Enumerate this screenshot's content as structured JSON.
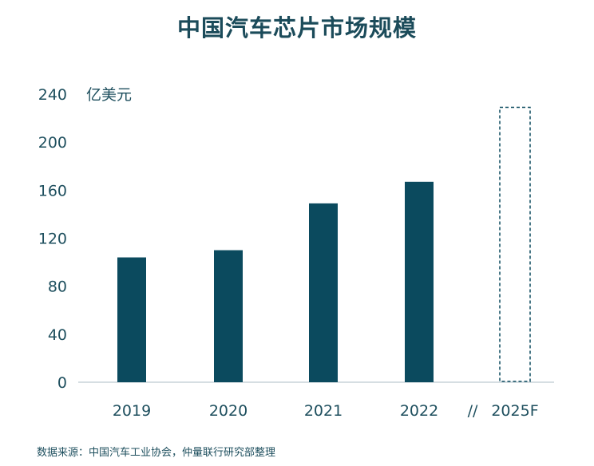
{
  "title": "中国汽车芯片市场规模",
  "source": "数据来源：中国汽车工业协会，仲量联行研究部整理",
  "chart_data": {
    "type": "bar",
    "title": "中国汽车芯片市场规模",
    "ylabel": "亿美元",
    "xlabel": "",
    "ylim": [
      0,
      240
    ],
    "yticks": [
      0,
      40,
      80,
      120,
      160,
      200,
      240
    ],
    "categories": [
      "2019",
      "2020",
      "2021",
      "2022",
      "2025F"
    ],
    "values": [
      104,
      110,
      149,
      167,
      229
    ],
    "forecast_category": "2025F",
    "axis_break_label": "//",
    "grid": false,
    "bar_color": "#0b4a5e",
    "forecast_style": "dashed-outline"
  }
}
